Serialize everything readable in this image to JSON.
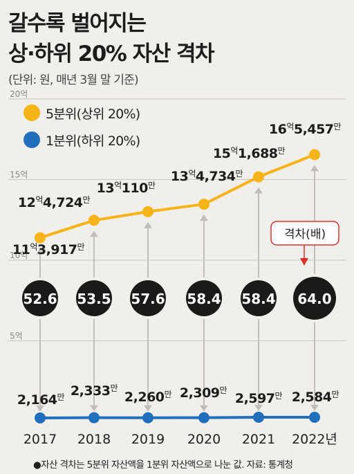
{
  "title_line1": "갈수록 벌어지는",
  "title_line2": "상·하위 20% 자산 격차",
  "unit_note": "(단위: 원, 매년 3월 말 기준)",
  "legend": [
    {
      "label": "5분위(상위 20%)",
      "color": "#f7b419"
    },
    {
      "label": "1분위(하위 20%)",
      "color": "#1f6fbd"
    }
  ],
  "gap_callout": "격차(배)",
  "footnote": "●자산 격차는 5분위 자산액을 1분위 자산액으로 나눈 값. 자료: 통계청",
  "chart_data": {
    "type": "line",
    "categories": [
      "2017",
      "2018",
      "2019",
      "2020",
      "2021",
      "2022년"
    ],
    "ylim": [
      0,
      20
    ],
    "y_ticks": [
      {
        "value": 20,
        "label": "20억"
      },
      {
        "value": 15,
        "label": "15억"
      },
      {
        "value": 10,
        "label": "10억"
      },
      {
        "value": 5,
        "label": "5억"
      }
    ],
    "series": [
      {
        "name": "5분위(상위 20%)",
        "color": "#f7b419",
        "values": [
          11.3917,
          12.4724,
          13.011,
          13.4734,
          15.1688,
          16.5457
        ],
        "labels": [
          {
            "eok": "11",
            "man": "3,917"
          },
          {
            "eok": "12",
            "man": "4,724"
          },
          {
            "eok": "13",
            "man": "110"
          },
          {
            "eok": "13",
            "man": "4,734"
          },
          {
            "eok": "15",
            "man": "1,688"
          },
          {
            "eok": "16",
            "man": "5,457"
          }
        ]
      },
      {
        "name": "1분위(하위 20%)",
        "color": "#1f6fbd",
        "values": [
          0.2164,
          0.2333,
          0.226,
          0.2309,
          0.2597,
          0.2584
        ],
        "labels": [
          {
            "eok": "",
            "man": "2,164"
          },
          {
            "eok": "",
            "man": "2,333"
          },
          {
            "eok": "",
            "man": "2,260"
          },
          {
            "eok": "",
            "man": "2,309"
          },
          {
            "eok": "",
            "man": "2,597"
          },
          {
            "eok": "",
            "man": "2,584"
          }
        ]
      }
    ],
    "gap_ratio": {
      "name": "격차(배)",
      "values": [
        "52.6",
        "53.5",
        "57.6",
        "58.4",
        "58.4",
        "64.0"
      ]
    },
    "eok_suffix": "억",
    "man_suffix": "만",
    "grid": true
  }
}
